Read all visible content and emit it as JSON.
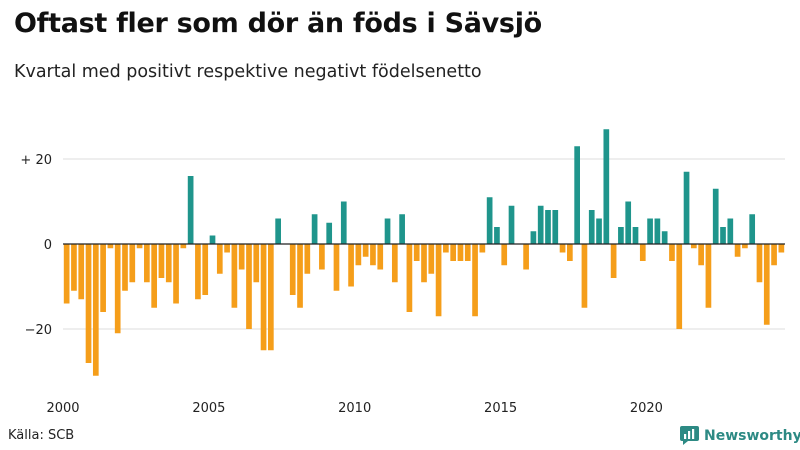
{
  "title": "Oftast fler som dör än föds i Sävsjö",
  "subtitle": "Kvartal med positivt respektive negativt födelsenetto",
  "source": "Källa: SCB",
  "brand": "Newsworthy",
  "colors": {
    "positive": "#1f958c",
    "negative": "#f59e1a",
    "brand": "#2d8a84",
    "grid": "#dddddd",
    "zero": "#222222"
  },
  "chart_data": {
    "type": "bar",
    "title": "Oftast fler som dör än föds i Sävsjö",
    "subtitle": "Kvartal med positivt respektive negativt födelsenetto",
    "xlabel": "",
    "ylabel": "",
    "x_start_year": 2000,
    "periods_per_year": 4,
    "x_ticks": [
      2000,
      2005,
      2010,
      2015,
      2020
    ],
    "x_tick_labels": [
      "2000",
      "2005",
      "2010",
      "2015",
      "2020"
    ],
    "y_ticks": [
      20,
      0,
      -20
    ],
    "y_tick_labels": [
      "+ 20",
      "0",
      "−20"
    ],
    "ylim": [
      -32,
      30
    ],
    "values": [
      -14,
      -11,
      -13,
      -28,
      -31,
      -16,
      -1,
      -21,
      -11,
      -9,
      -1,
      -9,
      -15,
      -8,
      -9,
      -14,
      -1,
      16,
      -13,
      -12,
      2,
      -7,
      -2,
      -15,
      -6,
      -20,
      -9,
      -25,
      -25,
      6,
      0,
      -12,
      -15,
      -7,
      7,
      -6,
      5,
      -11,
      10,
      -10,
      -5,
      -3,
      -5,
      -6,
      6,
      -9,
      7,
      -16,
      -4,
      -9,
      -7,
      -17,
      -2,
      -4,
      -4,
      -4,
      -17,
      -2,
      11,
      4,
      -5,
      9,
      0,
      -6,
      3,
      9,
      8,
      8,
      -2,
      -4,
      23,
      -15,
      8,
      6,
      27,
      -8,
      4,
      10,
      4,
      -4,
      6,
      6,
      3,
      -4,
      -20,
      17,
      -1,
      -5,
      -15,
      13,
      4,
      6,
      -3,
      -1,
      7,
      -9,
      -19,
      -5,
      -2
    ]
  }
}
